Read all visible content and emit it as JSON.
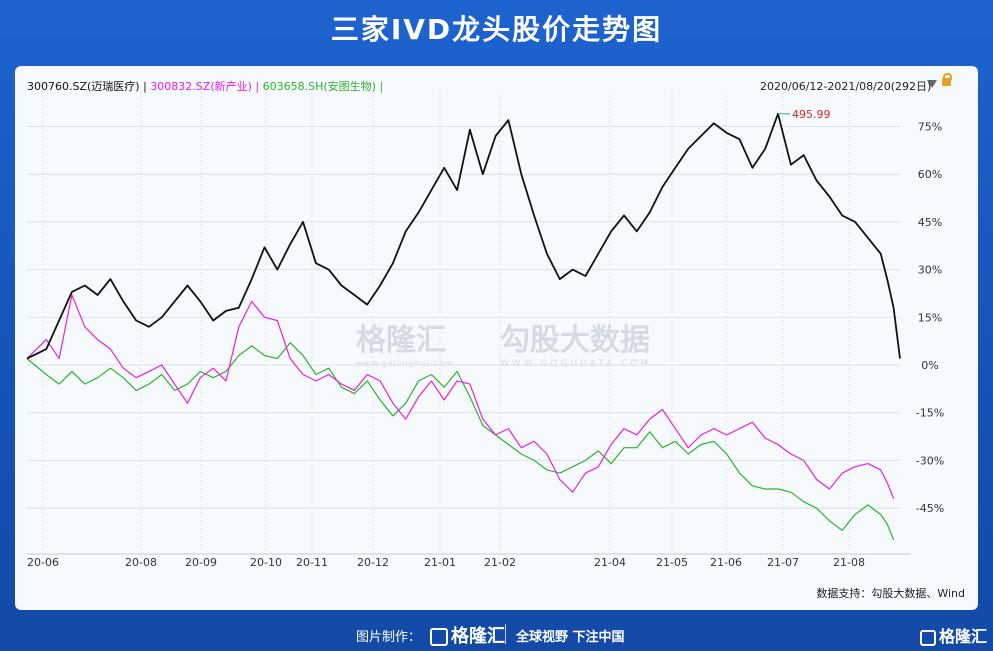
{
  "title": "三家IVD龙头股价走势图",
  "legend": {
    "s1": "300760.SZ(迈瑞医疗)",
    "s2": "300832.SZ(新产业)",
    "s3": "603658.SH(安图生物)",
    "sep": "|"
  },
  "range_label": "2020/06/12-2021/08/20(292日)",
  "source": "数据支持：勾股大数据、Wind",
  "watermark": {
    "brand": "格隆汇",
    "brand_url": "www.gelonghui.com",
    "gogu": "勾股大数据",
    "gogu_url": "WWW.GOGUDATA.COM"
  },
  "footer": {
    "label": "图片制作：",
    "logo": "格隆汇",
    "slogan": "全球视野 下注中国",
    "brand": "格隆汇"
  },
  "colors": {
    "s1": "#111111",
    "s2": "#e81fe3",
    "s3": "#2fb32f",
    "annotation": "#d4291f"
  },
  "chart_data": {
    "type": "line",
    "x_ticks": [
      "20-06",
      "20-08",
      "20-09",
      "20-10",
      "20-11",
      "20-12",
      "21-01",
      "21-02",
      "21-04",
      "21-05",
      "21-06",
      "21-07",
      "21-08"
    ],
    "y_ticks": [
      "75%",
      "60%",
      "45%",
      "30%",
      "15%",
      "0%",
      "-15%",
      "-30%",
      "-45%"
    ],
    "ylim": [
      -55,
      80
    ],
    "annotation": {
      "label": "495.99"
    },
    "series": [
      {
        "name": "300760.SZ(迈瑞医疗)",
        "color": "#111111",
        "points": [
          [
            0,
            2
          ],
          [
            6,
            5
          ],
          [
            10,
            14
          ],
          [
            14,
            23
          ],
          [
            18,
            25
          ],
          [
            22,
            22
          ],
          [
            26,
            27
          ],
          [
            30,
            20
          ],
          [
            34,
            14
          ],
          [
            38,
            12
          ],
          [
            42,
            15
          ],
          [
            46,
            20
          ],
          [
            50,
            25
          ],
          [
            54,
            20
          ],
          [
            58,
            14
          ],
          [
            62,
            17
          ],
          [
            66,
            18
          ],
          [
            70,
            27
          ],
          [
            74,
            37
          ],
          [
            78,
            30
          ],
          [
            82,
            38
          ],
          [
            86,
            45
          ],
          [
            90,
            32
          ],
          [
            94,
            30
          ],
          [
            98,
            25
          ],
          [
            102,
            22
          ],
          [
            106,
            19
          ],
          [
            110,
            25
          ],
          [
            114,
            32
          ],
          [
            118,
            42
          ],
          [
            122,
            48
          ],
          [
            126,
            55
          ],
          [
            130,
            62
          ],
          [
            134,
            55
          ],
          [
            138,
            74
          ],
          [
            142,
            60
          ],
          [
            146,
            72
          ],
          [
            150,
            77
          ],
          [
            154,
            60
          ],
          [
            158,
            47
          ],
          [
            162,
            35
          ],
          [
            166,
            27
          ],
          [
            170,
            30
          ],
          [
            174,
            28
          ],
          [
            178,
            35
          ],
          [
            182,
            42
          ],
          [
            186,
            47
          ],
          [
            190,
            42
          ],
          [
            194,
            48
          ],
          [
            198,
            56
          ],
          [
            202,
            62
          ],
          [
            206,
            68
          ],
          [
            210,
            72
          ],
          [
            214,
            76
          ],
          [
            218,
            73
          ],
          [
            222,
            71
          ],
          [
            226,
            62
          ],
          [
            230,
            68
          ],
          [
            234,
            79
          ],
          [
            238,
            63
          ],
          [
            242,
            66
          ],
          [
            246,
            58
          ],
          [
            250,
            53
          ],
          [
            254,
            47
          ],
          [
            258,
            45
          ],
          [
            262,
            40
          ],
          [
            266,
            35
          ],
          [
            268,
            27
          ],
          [
            270,
            18
          ],
          [
            272,
            2
          ]
        ]
      },
      {
        "name": "300832.SZ(新产业)",
        "color": "#e81fe3",
        "points": [
          [
            0,
            2
          ],
          [
            6,
            8
          ],
          [
            10,
            2
          ],
          [
            14,
            22
          ],
          [
            18,
            12
          ],
          [
            22,
            8
          ],
          [
            26,
            5
          ],
          [
            30,
            -1
          ],
          [
            34,
            -4
          ],
          [
            38,
            -2
          ],
          [
            42,
            0
          ],
          [
            46,
            -6
          ],
          [
            50,
            -12
          ],
          [
            54,
            -4
          ],
          [
            58,
            -1
          ],
          [
            62,
            -5
          ],
          [
            66,
            12
          ],
          [
            70,
            20
          ],
          [
            74,
            15
          ],
          [
            78,
            14
          ],
          [
            82,
            2
          ],
          [
            86,
            -3
          ],
          [
            90,
            -5
          ],
          [
            94,
            -3
          ],
          [
            98,
            -6
          ],
          [
            102,
            -8
          ],
          [
            106,
            -3
          ],
          [
            110,
            -5
          ],
          [
            114,
            -12
          ],
          [
            118,
            -17
          ],
          [
            122,
            -10
          ],
          [
            126,
            -5
          ],
          [
            130,
            -11
          ],
          [
            134,
            -5
          ],
          [
            138,
            -6
          ],
          [
            142,
            -17
          ],
          [
            146,
            -22
          ],
          [
            150,
            -20
          ],
          [
            154,
            -26
          ],
          [
            158,
            -24
          ],
          [
            162,
            -28
          ],
          [
            166,
            -36
          ],
          [
            170,
            -40
          ],
          [
            174,
            -34
          ],
          [
            178,
            -32
          ],
          [
            182,
            -25
          ],
          [
            186,
            -20
          ],
          [
            190,
            -22
          ],
          [
            194,
            -17
          ],
          [
            198,
            -14
          ],
          [
            202,
            -20
          ],
          [
            206,
            -26
          ],
          [
            210,
            -22
          ],
          [
            214,
            -20
          ],
          [
            218,
            -22
          ],
          [
            222,
            -20
          ],
          [
            226,
            -18
          ],
          [
            230,
            -23
          ],
          [
            234,
            -25
          ],
          [
            238,
            -28
          ],
          [
            242,
            -30
          ],
          [
            246,
            -36
          ],
          [
            250,
            -39
          ],
          [
            254,
            -34
          ],
          [
            258,
            -32
          ],
          [
            262,
            -31
          ],
          [
            266,
            -33
          ],
          [
            268,
            -37
          ],
          [
            270,
            -42
          ]
        ]
      },
      {
        "name": "603658.SH(安图生物)",
        "color": "#2fb32f",
        "points": [
          [
            0,
            2
          ],
          [
            6,
            -3
          ],
          [
            10,
            -6
          ],
          [
            14,
            -2
          ],
          [
            18,
            -6
          ],
          [
            22,
            -4
          ],
          [
            26,
            -1
          ],
          [
            30,
            -4
          ],
          [
            34,
            -8
          ],
          [
            38,
            -6
          ],
          [
            42,
            -3
          ],
          [
            46,
            -8
          ],
          [
            50,
            -6
          ],
          [
            54,
            -2
          ],
          [
            58,
            -4
          ],
          [
            62,
            -2
          ],
          [
            66,
            3
          ],
          [
            70,
            6
          ],
          [
            74,
            3
          ],
          [
            78,
            2
          ],
          [
            82,
            7
          ],
          [
            86,
            3
          ],
          [
            90,
            -3
          ],
          [
            94,
            -1
          ],
          [
            98,
            -7
          ],
          [
            102,
            -9
          ],
          [
            106,
            -5
          ],
          [
            110,
            -11
          ],
          [
            114,
            -16
          ],
          [
            118,
            -12
          ],
          [
            122,
            -5
          ],
          [
            126,
            -3
          ],
          [
            130,
            -7
          ],
          [
            134,
            -2
          ],
          [
            138,
            -10
          ],
          [
            142,
            -19
          ],
          [
            146,
            -22
          ],
          [
            150,
            -25
          ],
          [
            154,
            -28
          ],
          [
            158,
            -30
          ],
          [
            162,
            -33
          ],
          [
            166,
            -34
          ],
          [
            170,
            -32
          ],
          [
            174,
            -30
          ],
          [
            178,
            -27
          ],
          [
            182,
            -31
          ],
          [
            186,
            -26
          ],
          [
            190,
            -26
          ],
          [
            194,
            -21
          ],
          [
            198,
            -26
          ],
          [
            202,
            -24
          ],
          [
            206,
            -28
          ],
          [
            210,
            -25
          ],
          [
            214,
            -24
          ],
          [
            218,
            -28
          ],
          [
            222,
            -34
          ],
          [
            226,
            -38
          ],
          [
            230,
            -39
          ],
          [
            234,
            -39
          ],
          [
            238,
            -40
          ],
          [
            242,
            -43
          ],
          [
            246,
            -45
          ],
          [
            250,
            -49
          ],
          [
            254,
            -52
          ],
          [
            258,
            -47
          ],
          [
            262,
            -44
          ],
          [
            266,
            -47
          ],
          [
            268,
            -50
          ],
          [
            270,
            -55
          ]
        ]
      }
    ]
  }
}
